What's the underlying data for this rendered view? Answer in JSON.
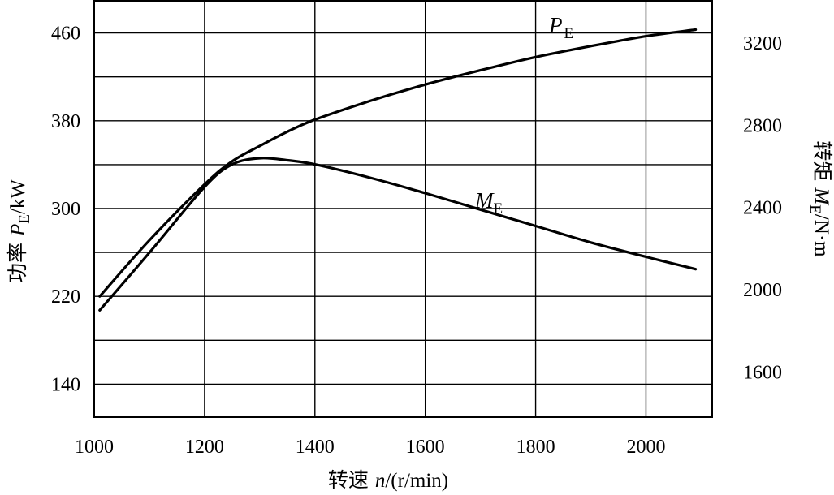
{
  "chart_data": {
    "type": "line",
    "title": "",
    "x": [
      1010,
      1100,
      1200,
      1250,
      1300,
      1350,
      1400,
      1500,
      1600,
      1700,
      1800,
      1900,
      2000,
      2090
    ],
    "xlim": [
      1000,
      2120
    ],
    "xticks": [
      1000,
      1200,
      1400,
      1600,
      1800,
      2000
    ],
    "xlabel": {
      "prefix": "转速 ",
      "var": "n",
      "suffix": "/(r/min)"
    },
    "y_left": {
      "label": {
        "prefix": "功率 ",
        "var": "P",
        "sub": "E",
        "suffix": "/kW"
      },
      "lim": [
        110,
        490
      ],
      "ticks": [
        140,
        220,
        300,
        380,
        460
      ],
      "grid_step": 40
    },
    "y_right": {
      "label": {
        "prefix": "转矩 ",
        "var": "M",
        "sub": "E",
        "suffix": "/N·m"
      },
      "lim": [
        1380,
        3410
      ],
      "ticks": [
        1600,
        2000,
        2400,
        2800,
        3200
      ]
    },
    "grid": true,
    "series": [
      {
        "name": "P_E",
        "axis": "left",
        "label_var": "P",
        "label_sub": "E",
        "values": [
          220,
          271,
          322,
          343,
          357,
          370,
          381,
          398,
          413,
          426,
          438,
          448,
          457,
          463
        ]
      },
      {
        "name": "M_E",
        "axis": "right",
        "label_var": "M",
        "label_sub": "E",
        "values": [
          1900,
          2180,
          2500,
          2610,
          2640,
          2630,
          2610,
          2545,
          2470,
          2390,
          2310,
          2230,
          2160,
          2100
        ]
      }
    ]
  }
}
